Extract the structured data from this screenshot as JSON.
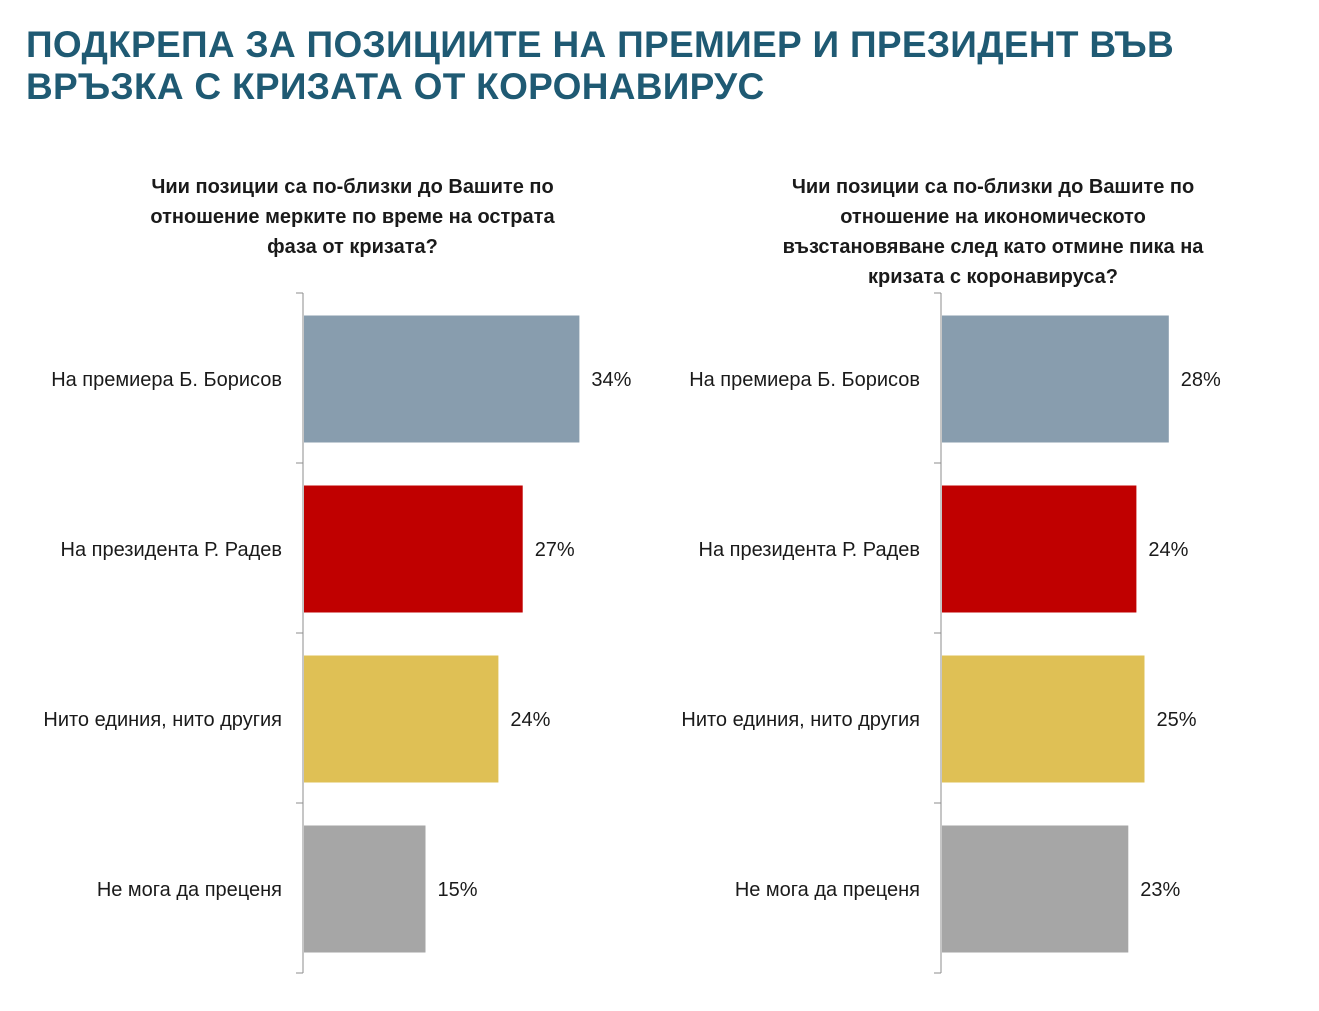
{
  "page": {
    "title": "ПОДКРЕПА ЗА ПОЗИЦИИТЕ НА ПРЕМИЕР И ПРЕЗИДЕНТ ВЪВ ВРЪЗКА С КРИЗАТА ОТ КОРОНАВИРУС"
  },
  "colors": {
    "title": "#1f5a73",
    "borisov": "#889dae",
    "radev": "#c00000",
    "neither": "#dfc055",
    "cannot_judge": "#a6a6a6"
  },
  "chart_data": [
    {
      "type": "bar",
      "orientation": "horizontal",
      "title": "Чии позиции са по-близки до Вашите по отношение мерките по време на острата фаза от кризата?",
      "categories": [
        "На премиера Б. Борисов",
        "На президента Р. Радев",
        "Нито единия, нито другия",
        "Не мога да преценя"
      ],
      "values": [
        34,
        27,
        24,
        15
      ],
      "value_labels": [
        "34%",
        "27%",
        "24%",
        "15%"
      ],
      "bar_colors": [
        "#889dae",
        "#c00000",
        "#dfc055",
        "#a6a6a6"
      ],
      "unit": "%",
      "xlim": [
        0,
        40
      ],
      "grid": false,
      "legend": "none"
    },
    {
      "type": "bar",
      "orientation": "horizontal",
      "title": "Чии позиции са по-близки до Вашите по отношение на икономическото възстановяване след като отмине пика на кризата с коронавируса?",
      "categories": [
        "На премиера Б. Борисов",
        "На президента Р. Радев",
        "Нито единия, нито другия",
        "Не мога да преценя"
      ],
      "values": [
        28,
        24,
        25,
        23
      ],
      "value_labels": [
        "28%",
        "24%",
        "25%",
        "23%"
      ],
      "bar_colors": [
        "#889dae",
        "#c00000",
        "#dfc055",
        "#a6a6a6"
      ],
      "unit": "%",
      "xlim": [
        0,
        40
      ],
      "grid": false,
      "legend": "none"
    }
  ]
}
